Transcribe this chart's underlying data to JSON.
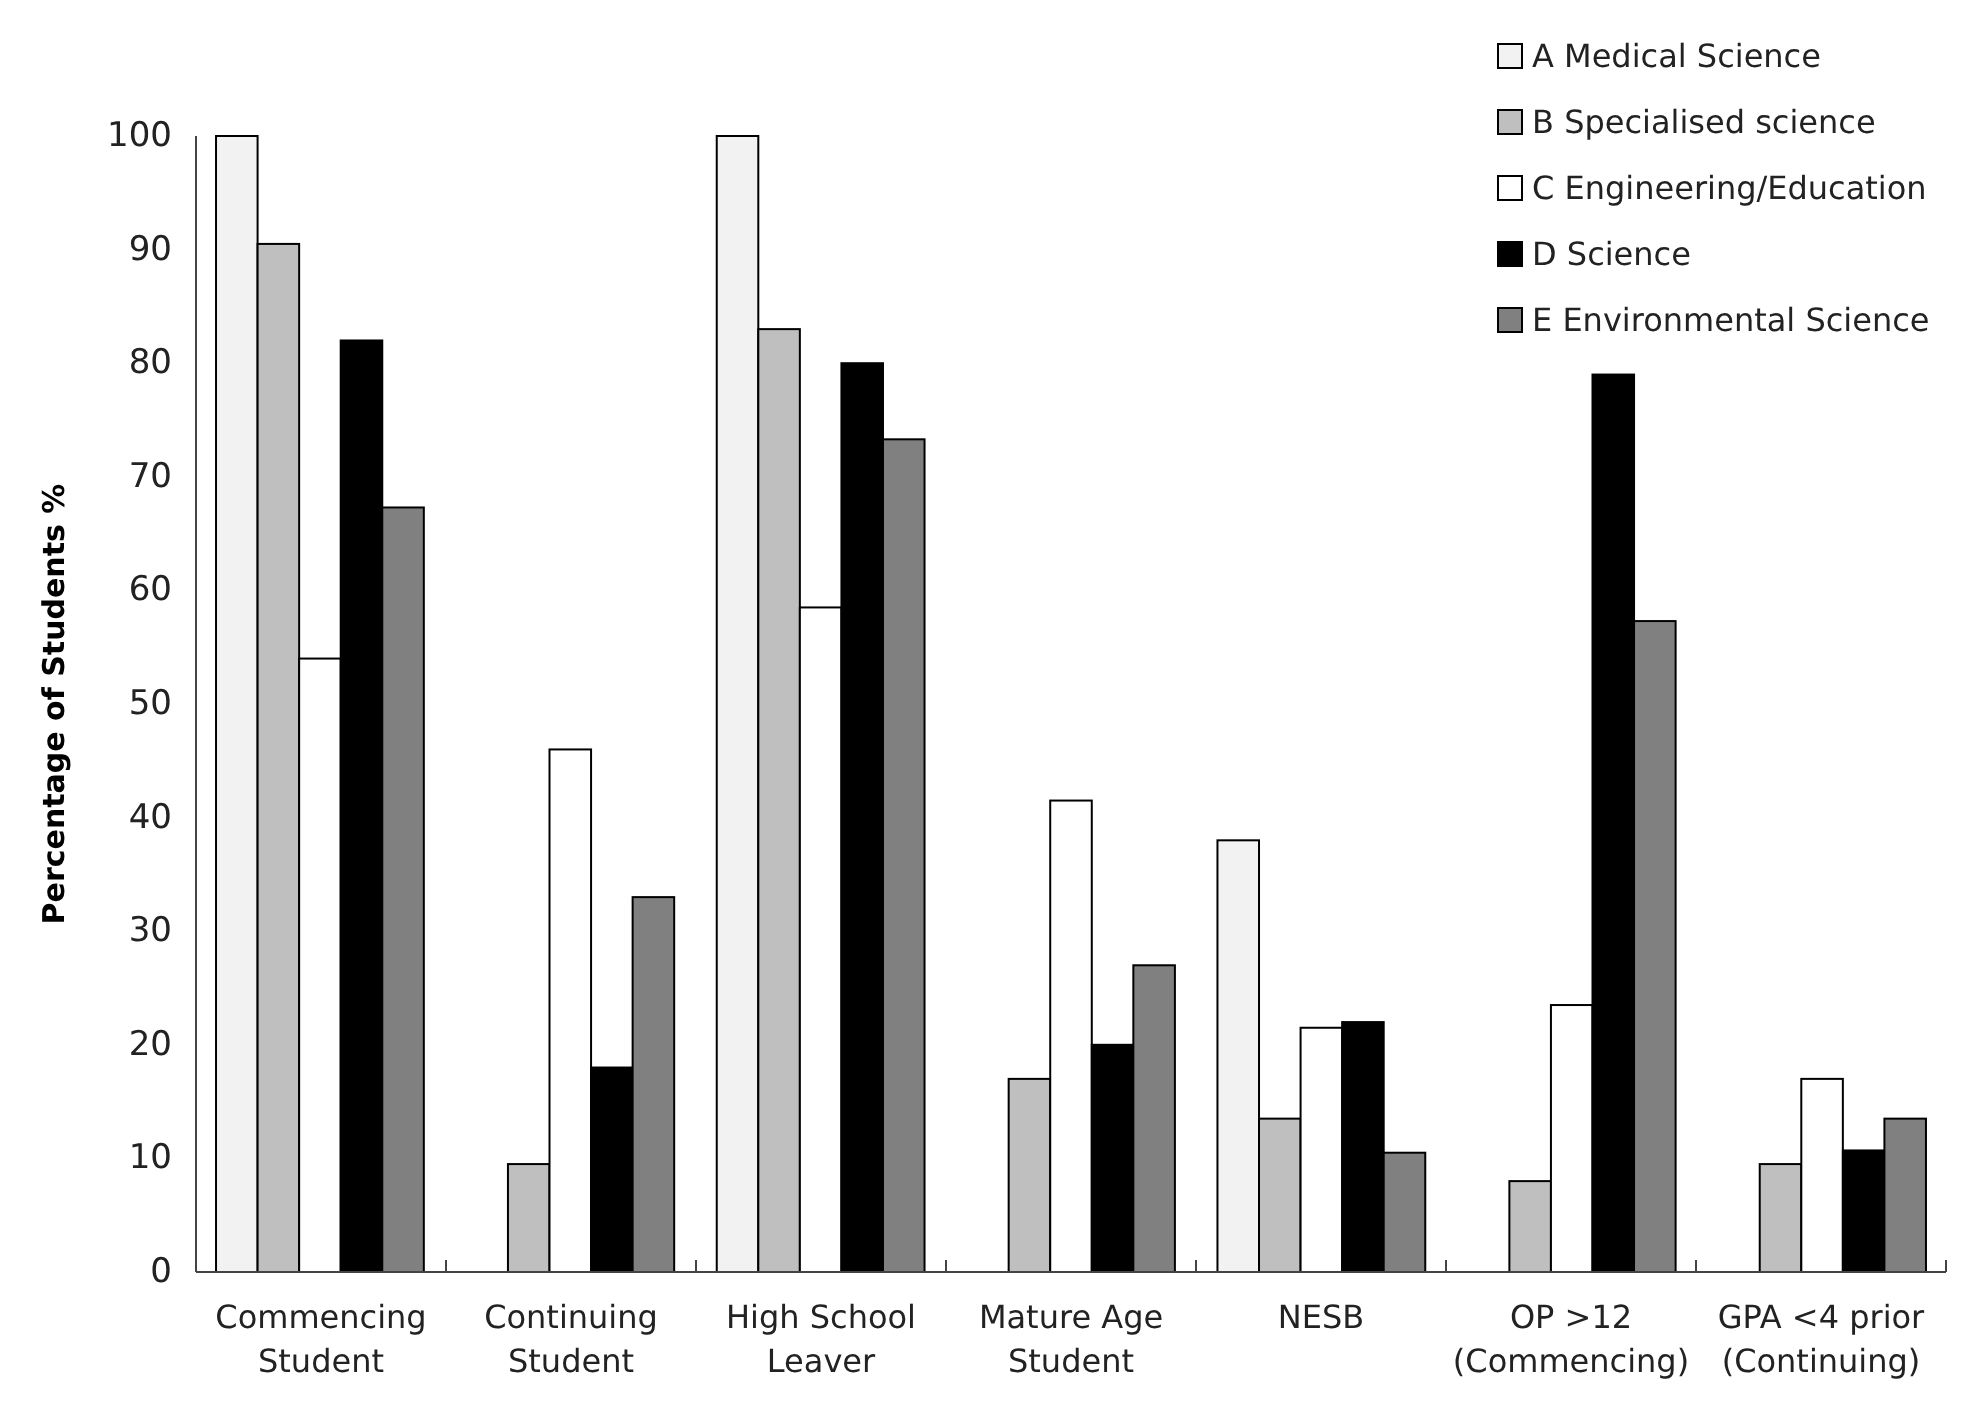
{
  "chart_data": {
    "type": "bar",
    "ylabel": "Percentage of Students %",
    "categories": [
      "Commencing Student",
      "Continuing Student",
      "High School Leaver",
      "Mature Age Student",
      "NESB",
      "OP >12 (Commencing)",
      "GPA <4 prior (Continuing)"
    ],
    "series": [
      {
        "name": "A Medical Science",
        "color": "#f2f2f2",
        "values": [
          100,
          0,
          100,
          0,
          38,
          0,
          0
        ]
      },
      {
        "name": "B Specialised science",
        "color": "#bfbfbf",
        "values": [
          90.5,
          9.5,
          83,
          17,
          13.5,
          8,
          9.5
        ]
      },
      {
        "name": "C Engineering/Education",
        "color": "#ffffff",
        "values": [
          54,
          46,
          58.5,
          41.5,
          21.5,
          23.5,
          17
        ]
      },
      {
        "name": "D Science",
        "color": "#000000",
        "values": [
          82,
          18,
          80,
          20,
          22,
          79,
          10.7
        ]
      },
      {
        "name": "E Environmental Science",
        "color": "#808080",
        "values": [
          67.3,
          33,
          73.3,
          27,
          10.5,
          57.3,
          13.5
        ]
      }
    ],
    "ylim": [
      0,
      100
    ],
    "yticks": [
      0,
      10,
      20,
      30,
      40,
      50,
      60,
      70,
      80,
      90,
      100
    ],
    "grid": false,
    "legend": "top right"
  }
}
